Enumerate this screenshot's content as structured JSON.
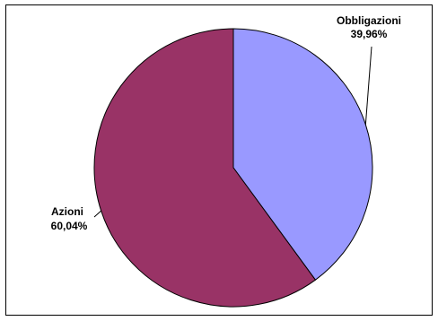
{
  "chart_data": {
    "type": "pie",
    "slices": [
      {
        "name": "Obbligazioni",
        "value": 39.96,
        "label": "39,96%",
        "color": "#9999ff"
      },
      {
        "name": "Azioni",
        "value": 60.04,
        "label": "60,04%",
        "color": "#993366"
      }
    ],
    "start_angle_deg": 0,
    "direction": "clockwise",
    "legend": "none",
    "border_color": "#000000"
  }
}
